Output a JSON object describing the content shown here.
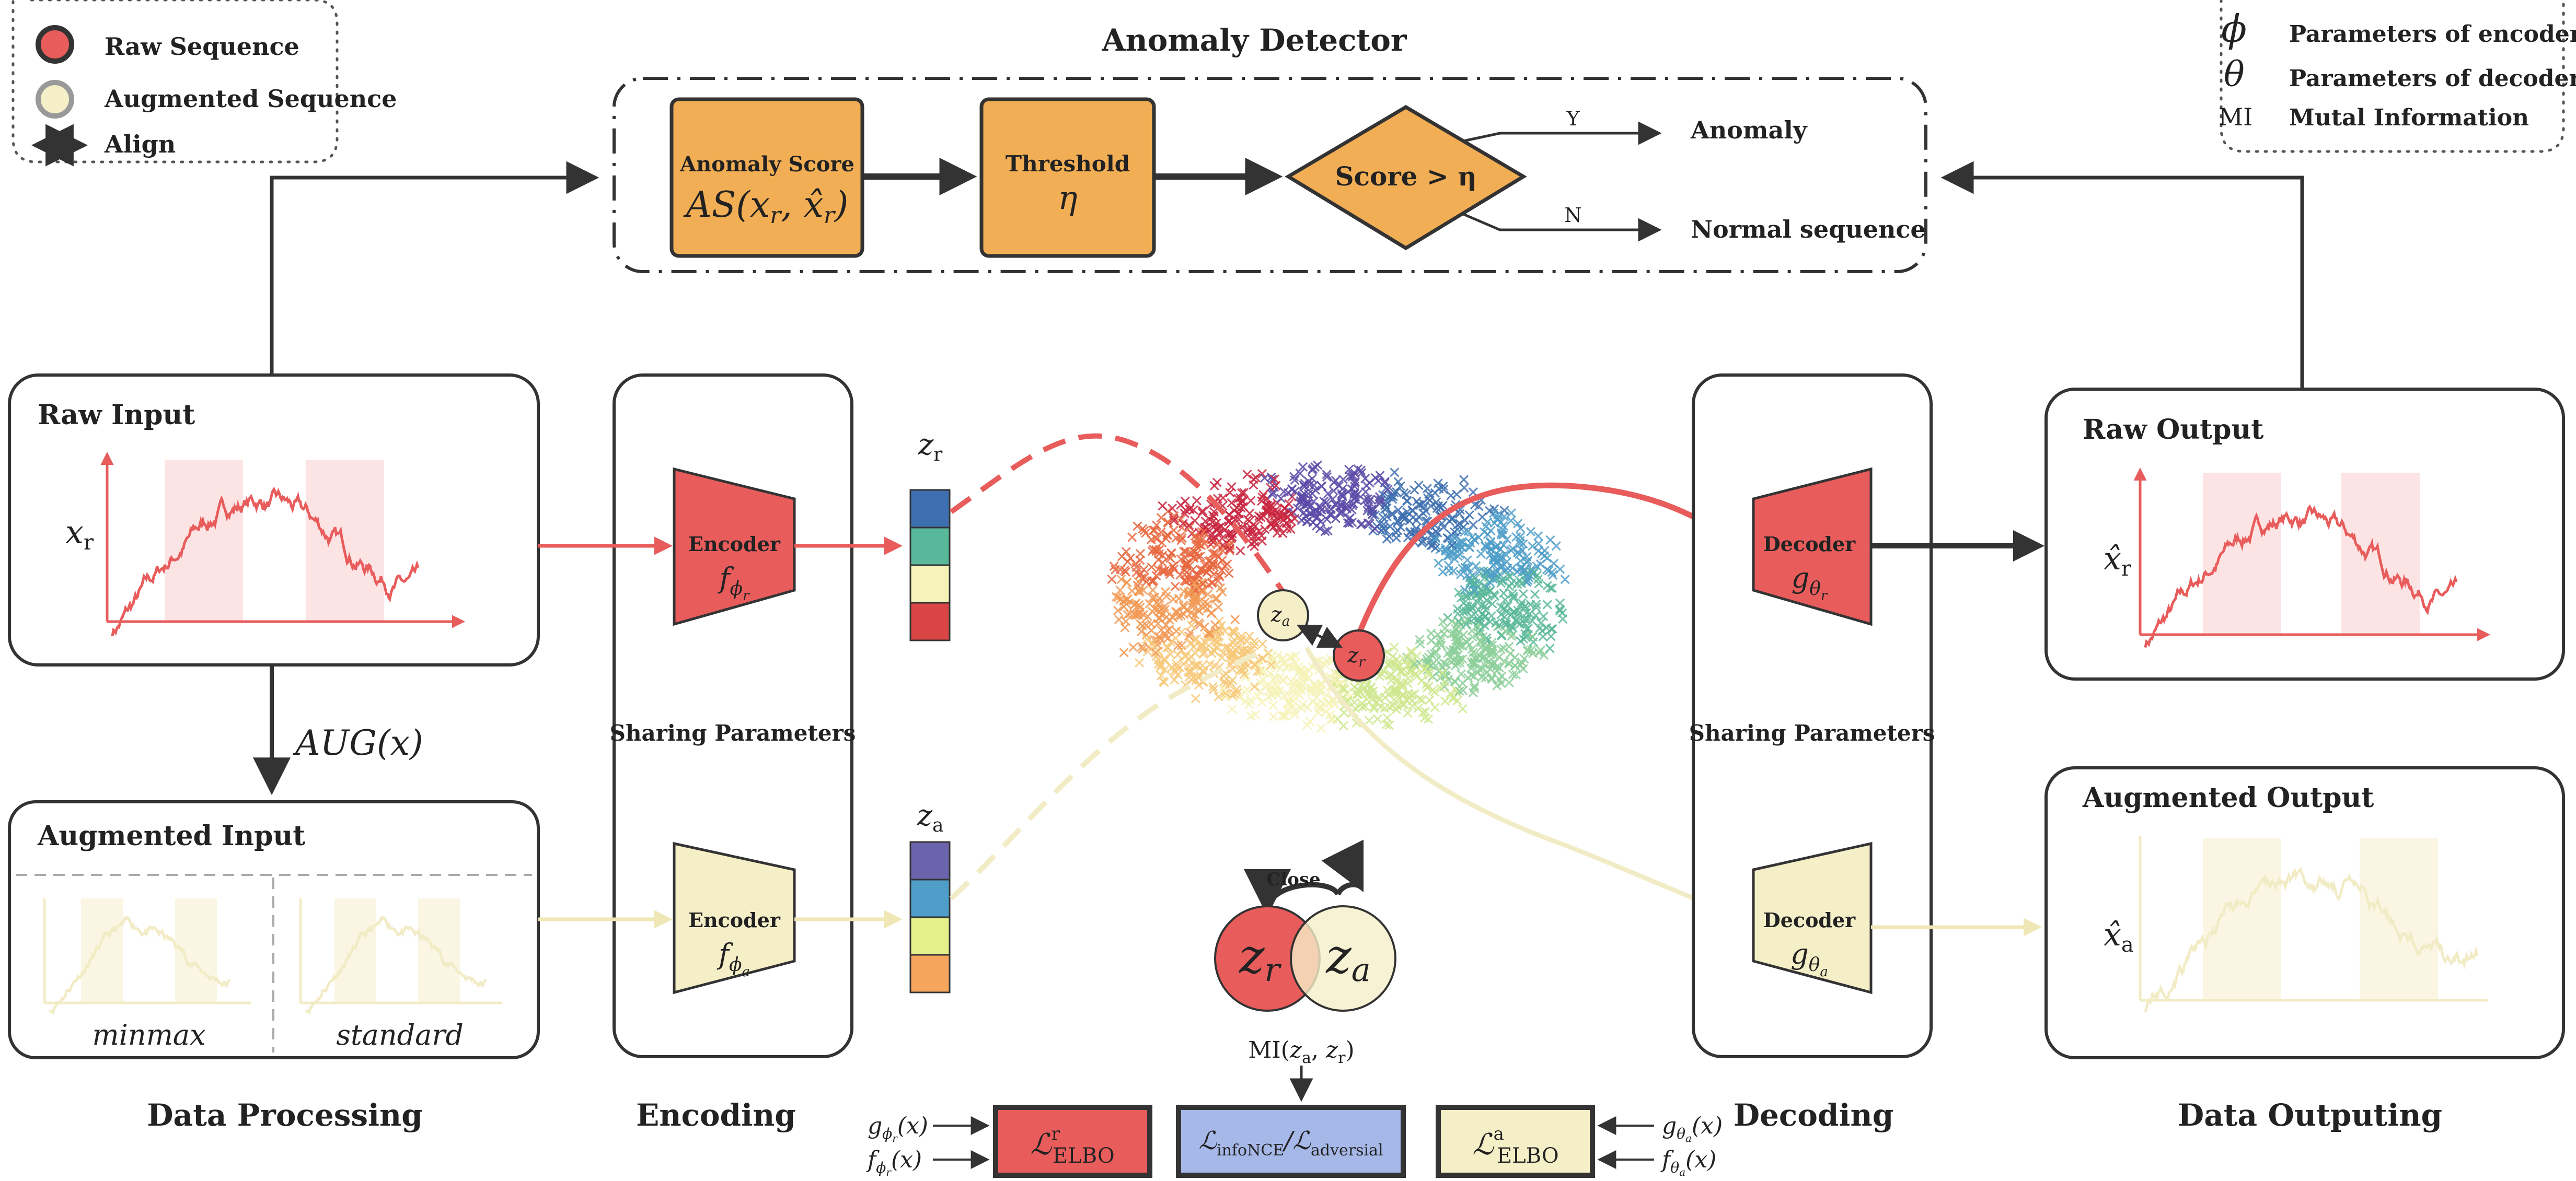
{
  "legend_left": {
    "items": [
      {
        "label": "Raw Sequence",
        "color": "#e85c5c"
      },
      {
        "label": "Augmented Sequence",
        "color": "#f5efc8"
      },
      {
        "label": "Align"
      }
    ]
  },
  "legend_right": {
    "items": [
      {
        "symbol": "ϕ",
        "label": "Parameters of encoder"
      },
      {
        "symbol": "θ",
        "label": "Parameters of decoder"
      },
      {
        "symbol": "MI",
        "label": "Mutal Information"
      }
    ]
  },
  "detector": {
    "title": "Anomaly Detector",
    "score_label": "Anomaly Score",
    "score_formula": "AS(xr, x̂r)",
    "threshold_label": "Threshold",
    "threshold_symbol": "η",
    "decision": "Score > η",
    "yes": "Y",
    "no": "N",
    "anomaly": "Anomaly",
    "normal": "Normal sequence"
  },
  "raw_input": {
    "title": "Raw Input",
    "var": "x",
    "sub": "r"
  },
  "aug_input": {
    "title": "Augmented Input",
    "left": "minmax",
    "right": "standard"
  },
  "aug_op": "AUG(x)",
  "encoding": {
    "sharing": "Sharing Parameters",
    "encoder_label": "Encoder",
    "enc_r_sym": "fϕr",
    "enc_a_sym": "fϕa"
  },
  "decoding": {
    "sharing": "Sharing Parameters",
    "decoder_label": "Decoder",
    "dec_r_sym": "gθr",
    "dec_a_sym": "gθa"
  },
  "latent": {
    "zr": "zr",
    "za": "za",
    "zr_colors": [
      "#3e6fb0",
      "#5ab89a",
      "#f6f3b8",
      "#d94545"
    ],
    "za_colors": [
      "#6c63ad",
      "#4f9ec9",
      "#e3f08c",
      "#f5a55c"
    ],
    "close": "Close"
  },
  "raw_output": {
    "title": "Raw Output",
    "var": "x̂",
    "sub": "r"
  },
  "aug_output": {
    "title": "Augmented Output",
    "var": "x̂",
    "sub": "a"
  },
  "losses": {
    "mi": "MI(za, zr)",
    "elbo_r": "ℒ^r ELBO",
    "info": "ℒinfoNCE/ℒadversial",
    "elbo_a": "ℒ^a ELBO",
    "g_phi": "gϕr(x)",
    "f_phi": "fϕr(x)",
    "g_theta": "gθa(x)",
    "f_theta": "fθa(x)"
  },
  "stage_labels": {
    "processing": "Data Processing",
    "encoding": "Encoding",
    "decoding": "Decoding",
    "outputing": "Data Outputing"
  }
}
